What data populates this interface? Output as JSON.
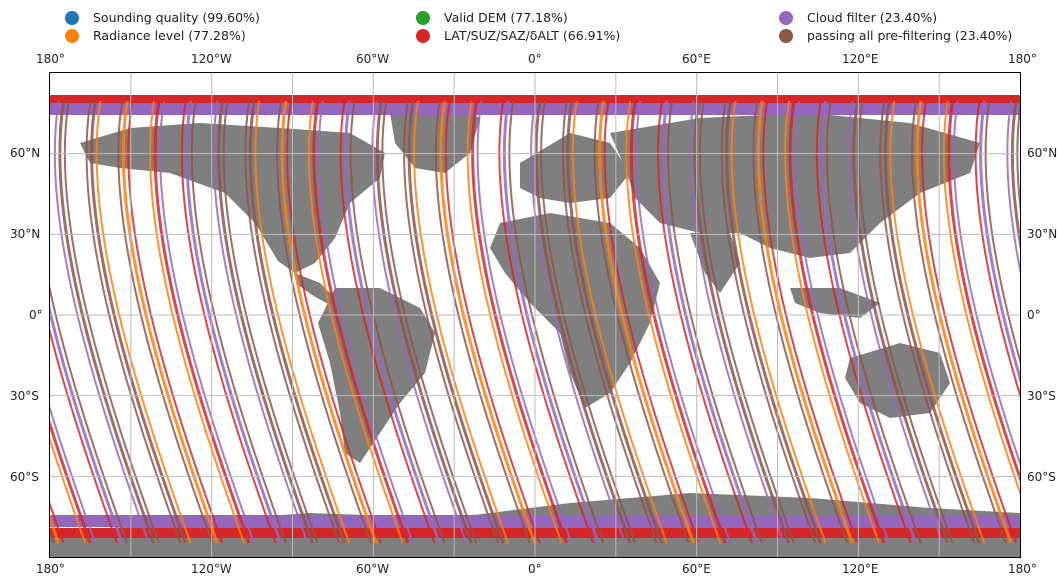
{
  "legend": {
    "items": [
      {
        "label": "Sounding quality (99.60%)",
        "color": "#1f77b4"
      },
      {
        "label": "Radiance level (77.28%)",
        "color": "#ff7f0e"
      },
      {
        "label": "Valid DEM (77.18%)",
        "color": "#2ca02c"
      },
      {
        "label": "LAT/SUZ/SAZ/δALT (66.91%)",
        "color": "#d62728"
      },
      {
        "label": "Cloud filter (23.40%)",
        "color": "#9467bd"
      },
      {
        "label": "passing all pre-filtering (23.40%)",
        "color": "#8c564b"
      }
    ]
  },
  "axes": {
    "lon_top": [
      "180°",
      "120°W",
      "60°W",
      "0°",
      "60°E",
      "120°E",
      "180°"
    ],
    "lon_bottom": [
      "180°",
      "120°W",
      "60°W",
      "0°",
      "60°E",
      "120°E",
      "180°"
    ],
    "lat_left": [
      "60°N",
      "30°N",
      "0°",
      "30°S",
      "60°S"
    ],
    "lat_right": [
      "60°N",
      "30°N",
      "0°",
      "30°S",
      "60°S"
    ]
  },
  "map": {
    "projection": "PlateCarree",
    "land_color": "#7f7f7f",
    "gridlines": true
  }
}
